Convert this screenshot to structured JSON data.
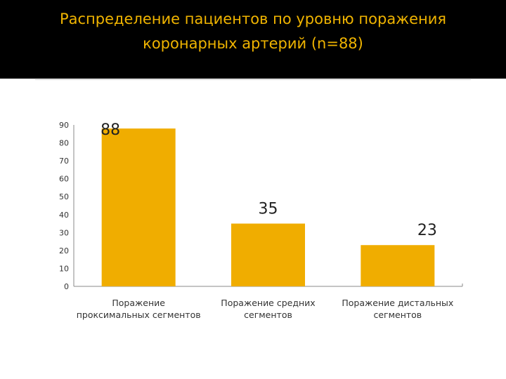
{
  "title": {
    "line1": "Распределение пациентов по уровню поражения",
    "line2": "коронарных артерий (n=88)"
  },
  "colors": {
    "bar": "#f0ad00",
    "header_bg": "#000000",
    "title": "#f0b400"
  },
  "chart_data": {
    "type": "bar",
    "categories": [
      "Поражение проксимальных сегментов",
      "Поражение средних сегментов",
      "Поражение дистальных сегментов"
    ],
    "category_lines": [
      [
        "Поражение",
        "проксимальных сегментов"
      ],
      [
        "Поражение средних",
        "сегментов"
      ],
      [
        "Поражение дистальных",
        "сегментов"
      ]
    ],
    "values": [
      88,
      35,
      23
    ],
    "data_labels": [
      "88",
      "35",
      "23"
    ],
    "yticks": [
      0,
      10,
      20,
      30,
      40,
      50,
      60,
      70,
      80,
      90
    ],
    "ylim": [
      0,
      90
    ],
    "grid": false,
    "legend": "none",
    "title": "Распределение пациентов по уровню поражения коронарных артерий (n=88)"
  }
}
